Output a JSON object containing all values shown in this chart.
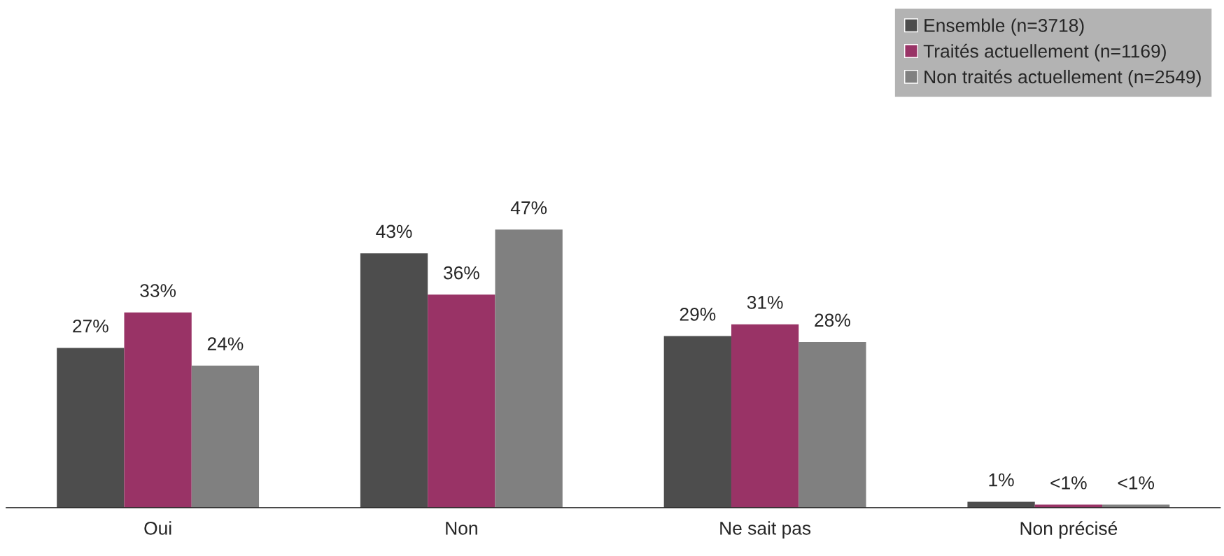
{
  "chart_data": {
    "type": "bar",
    "categories": [
      "Oui",
      "Non",
      "Ne sait pas",
      "Non précisé"
    ],
    "series": [
      {
        "name": "Ensemble (n=3718)",
        "color": "#4d4d4d",
        "values": [
          27,
          43,
          29,
          1
        ],
        "value_labels": [
          "27%",
          "43%",
          "29%",
          "1%"
        ]
      },
      {
        "name": "Traités actuellement (n=1169)",
        "color": "#993366",
        "values": [
          33,
          36,
          31,
          0.5
        ],
        "value_labels": [
          "33%",
          "36%",
          "31%",
          "<1%"
        ]
      },
      {
        "name": "Non traités actuellement (n=2549)",
        "color": "#808080",
        "values": [
          24,
          47,
          28,
          0.5
        ],
        "value_labels": [
          "24%",
          "47%",
          "28%",
          "<1%"
        ]
      }
    ],
    "legend": "top right",
    "grid": false,
    "tick_labels": "x"
  }
}
